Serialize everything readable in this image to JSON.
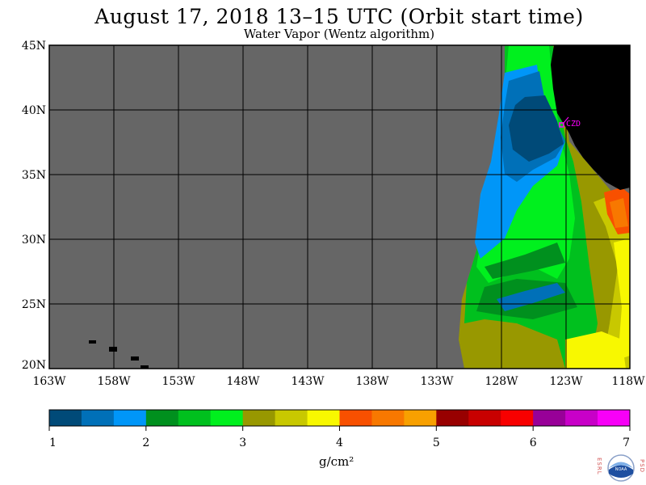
{
  "header": {
    "title": "August 17, 2018  13–15 UTC  (Orbit start time)",
    "subtitle": "Water Vapor (Wentz algorithm)"
  },
  "map": {
    "lon_labels": [
      "163W",
      "158W",
      "153W",
      "148W",
      "143W",
      "138W",
      "133W",
      "128W",
      "123W",
      "118W"
    ],
    "lat_labels": [
      "45N",
      "40N",
      "35N",
      "30N",
      "25N",
      "20N"
    ],
    "station": "CZD",
    "colors": {
      "no_data": "#666666",
      "land": "#000000",
      "grid": "#000000",
      "station": "#ff00ff"
    }
  },
  "colorbar": {
    "colors": [
      "#004a78",
      "#0070b8",
      "#0096f8",
      "#00901e",
      "#00c01e",
      "#00f01e",
      "#989800",
      "#c8c800",
      "#f8f800",
      "#f85000",
      "#f87800",
      "#f8a000",
      "#980000",
      "#c80000",
      "#f80000",
      "#980098",
      "#c800c8",
      "#f800f8"
    ],
    "tick_labels": [
      "1",
      "2",
      "3",
      "4",
      "5",
      "6",
      "7"
    ],
    "unit": "g/cm²"
  },
  "logo": {
    "left_text": "ESRL",
    "right_text": "PSD",
    "center_text": "NOAA"
  }
}
